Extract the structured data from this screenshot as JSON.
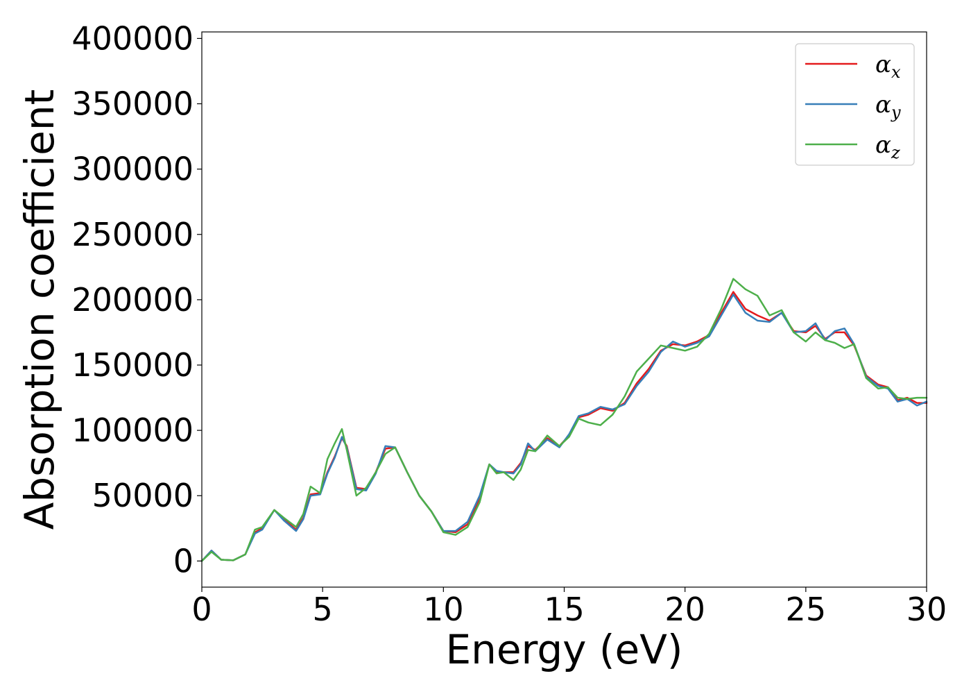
{
  "chart_data": {
    "type": "line",
    "title": "",
    "xlabel": "Energy (eV)",
    "ylabel": "Absorption coefficient",
    "xlim": [
      0,
      30
    ],
    "ylim": [
      -20000,
      405000
    ],
    "xticks": [
      0,
      5,
      10,
      15,
      20,
      25,
      30
    ],
    "yticks": [
      0,
      50000,
      100000,
      150000,
      200000,
      250000,
      300000,
      350000,
      400000
    ],
    "grid": false,
    "legend_position": "top-right",
    "series": [
      {
        "name": "α_x",
        "label_base": "α",
        "label_sub": "x",
        "color": "#e41a1c",
        "x": [
          0,
          0.4,
          0.8,
          1.3,
          1.8,
          2.2,
          2.5,
          3.0,
          3.4,
          3.9,
          4.2,
          4.5,
          4.9,
          5.2,
          5.5,
          5.8,
          6.0,
          6.4,
          6.8,
          7.2,
          7.6,
          8.0,
          8.5,
          9.0,
          9.5,
          10.0,
          10.5,
          11.0,
          11.5,
          11.9,
          12.2,
          12.5,
          12.9,
          13.2,
          13.5,
          13.8,
          14.3,
          14.8,
          15.2,
          15.6,
          16.0,
          16.5,
          17.0,
          17.5,
          18.0,
          18.5,
          19.0,
          19.5,
          20.0,
          20.5,
          21.0,
          21.5,
          22.0,
          22.5,
          23.0,
          23.5,
          24.0,
          24.5,
          25.0,
          25.4,
          25.8,
          26.2,
          26.6,
          27.0,
          27.5,
          28.0,
          28.4,
          28.8,
          29.2,
          29.6,
          30.0
        ],
        "values": [
          0,
          8000,
          1000,
          500,
          5000,
          22000,
          25000,
          39000,
          32000,
          24000,
          33000,
          51000,
          52000,
          68000,
          80000,
          94000,
          88000,
          56000,
          55000,
          68000,
          86000,
          87000,
          68000,
          50000,
          38000,
          23000,
          22000,
          28000,
          48000,
          74000,
          68000,
          68000,
          68000,
          75000,
          88000,
          85000,
          94000,
          88000,
          96000,
          110000,
          112000,
          117000,
          115000,
          121000,
          136000,
          147000,
          161000,
          166000,
          165000,
          168000,
          173000,
          190000,
          206000,
          193000,
          188000,
          184000,
          190000,
          176000,
          175000,
          180000,
          170000,
          175000,
          175000,
          165000,
          142000,
          135000,
          133000,
          123000,
          125000,
          121000,
          121000
        ]
      },
      {
        "name": "α_y",
        "label_base": "α",
        "label_sub": "y",
        "color": "#377eb8",
        "x": [
          0,
          0.4,
          0.8,
          1.3,
          1.8,
          2.2,
          2.5,
          3.0,
          3.4,
          3.9,
          4.2,
          4.5,
          4.9,
          5.2,
          5.5,
          5.8,
          6.0,
          6.4,
          6.8,
          7.2,
          7.6,
          8.0,
          8.5,
          9.0,
          9.5,
          10.0,
          10.5,
          11.0,
          11.5,
          11.9,
          12.2,
          12.5,
          12.9,
          13.2,
          13.5,
          13.8,
          14.3,
          14.8,
          15.2,
          15.6,
          16.0,
          16.5,
          17.0,
          17.5,
          18.0,
          18.5,
          19.0,
          19.5,
          20.0,
          20.5,
          21.0,
          21.5,
          22.0,
          22.5,
          23.0,
          23.5,
          24.0,
          24.5,
          25.0,
          25.4,
          25.8,
          26.2,
          26.6,
          27.0,
          27.5,
          28.0,
          28.4,
          28.8,
          29.2,
          29.6,
          30.0
        ],
        "values": [
          0,
          8000,
          1000,
          500,
          5000,
          21000,
          24000,
          39000,
          31000,
          23000,
          32000,
          50000,
          51000,
          67000,
          79000,
          95000,
          87000,
          55000,
          54000,
          67000,
          88000,
          87000,
          68000,
          50000,
          38000,
          23000,
          23000,
          30000,
          50000,
          74000,
          69000,
          68000,
          67000,
          74000,
          90000,
          84000,
          93000,
          87000,
          97000,
          111000,
          113000,
          118000,
          116000,
          120000,
          134000,
          145000,
          160000,
          168000,
          164000,
          167000,
          172000,
          188000,
          204000,
          190000,
          184000,
          183000,
          190000,
          175000,
          176000,
          182000,
          169000,
          176000,
          178000,
          166000,
          141000,
          134000,
          132000,
          122000,
          124000,
          119000,
          122000
        ]
      },
      {
        "name": "α_z",
        "label_base": "α",
        "label_sub": "z",
        "color": "#4daf4a",
        "x": [
          0,
          0.4,
          0.8,
          1.3,
          1.8,
          2.2,
          2.5,
          3.0,
          3.4,
          3.9,
          4.2,
          4.5,
          4.9,
          5.2,
          5.5,
          5.8,
          6.0,
          6.4,
          6.8,
          7.2,
          7.6,
          8.0,
          8.5,
          9.0,
          9.5,
          10.0,
          10.5,
          11.0,
          11.5,
          11.9,
          12.2,
          12.5,
          12.9,
          13.2,
          13.5,
          13.8,
          14.3,
          14.8,
          15.2,
          15.6,
          16.0,
          16.5,
          17.0,
          17.5,
          18.0,
          18.5,
          19.0,
          19.5,
          20.0,
          20.5,
          21.0,
          21.5,
          22.0,
          22.5,
          23.0,
          23.5,
          24.0,
          24.5,
          25.0,
          25.4,
          25.8,
          26.2,
          26.6,
          27.0,
          27.5,
          28.0,
          28.4,
          28.8,
          29.2,
          29.6,
          30.0
        ],
        "values": [
          0,
          7000,
          1000,
          500,
          5000,
          24000,
          26000,
          39000,
          33000,
          26000,
          36000,
          57000,
          52000,
          78000,
          90000,
          101000,
          85000,
          50000,
          56000,
          68000,
          82000,
          87000,
          68000,
          50000,
          38000,
          22000,
          20000,
          26000,
          45000,
          74000,
          67000,
          68000,
          62000,
          70000,
          85000,
          84000,
          96000,
          88000,
          95000,
          109000,
          106000,
          104000,
          112000,
          126000,
          145000,
          155000,
          165000,
          163000,
          161000,
          164000,
          174000,
          193000,
          216000,
          208000,
          203000,
          188000,
          192000,
          175000,
          168000,
          175000,
          169000,
          167000,
          163000,
          166000,
          140000,
          132000,
          133000,
          125000,
          124000,
          125000,
          125000
        ]
      }
    ]
  }
}
